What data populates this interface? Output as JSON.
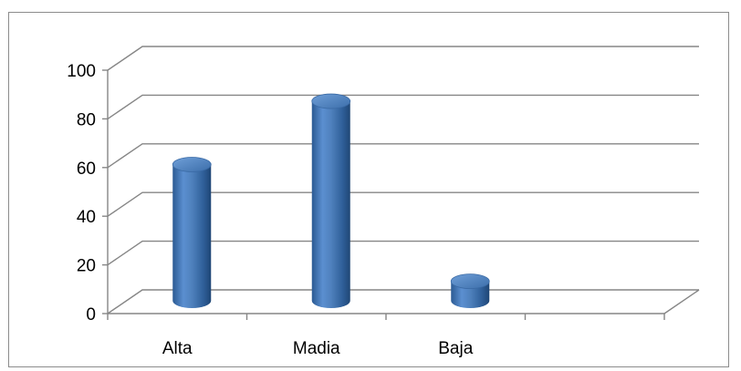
{
  "chart_data": {
    "type": "bar",
    "style": "3d-cylinder",
    "categories": [
      "Alta",
      "Madia",
      "Baja"
    ],
    "series": [
      {
        "values": [
          56,
          82,
          8
        ],
        "color": "#4f81bd"
      }
    ],
    "title": "",
    "xlabel": "",
    "ylabel": "",
    "ylim": [
      0,
      100
    ],
    "y_ticks": [
      "0",
      "20",
      "40",
      "60",
      "80",
      "100"
    ],
    "grid": true,
    "legend": "none"
  }
}
